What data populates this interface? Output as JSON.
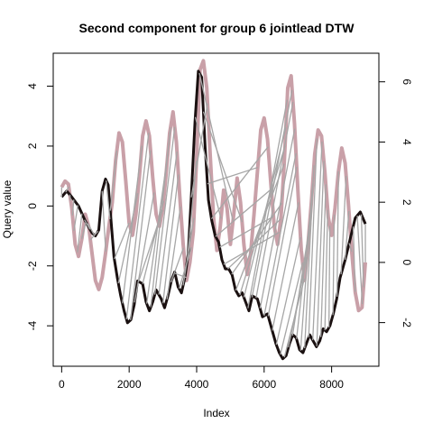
{
  "chart_data": {
    "type": "line",
    "title": "Second component for group 6 jointlead DTW",
    "xlabel": "Index",
    "ylabel": "Query value",
    "xlim": [
      -250,
      9400
    ],
    "ylim": [
      -5.35,
      5.1
    ],
    "ylim_right": [
      -3.45,
      6.95
    ],
    "x_ticks": [
      0,
      2000,
      4000,
      6000,
      8000
    ],
    "y_ticks_left": [
      -4,
      -2,
      0,
      2,
      4
    ],
    "y_ticks_right": [
      -2,
      0,
      2,
      4,
      6
    ],
    "grid": false,
    "legend": "none",
    "colors": {
      "query": "#1a1010",
      "reference": "#c9a0a8",
      "alignment": "#a6a6a6"
    },
    "series": [
      {
        "axis": "left",
        "x": [
          0,
          150,
          300,
          500,
          700,
          900,
          1000,
          1100,
          1200,
          1300,
          1380,
          1450,
          1550,
          1650,
          1750,
          1850,
          1950,
          2050,
          2150,
          2250,
          2400,
          2500,
          2600,
          2700,
          2800,
          2950,
          3050,
          3150,
          3250,
          3350,
          3450,
          3550,
          3650,
          3750,
          3850,
          3950,
          4050,
          4150,
          4250,
          4350,
          4450,
          4550,
          4650,
          4750,
          4850,
          4950,
          5050,
          5150,
          5250,
          5350,
          5450,
          5550,
          5650,
          5800,
          5950,
          6100,
          6250,
          6350,
          6450,
          6550,
          6650,
          6750,
          6850,
          6950,
          7050,
          7150,
          7250,
          7350,
          7450,
          7550,
          7650,
          7750,
          7850,
          7950,
          8050,
          8150,
          8250,
          8400,
          8550,
          8700,
          8850,
          9000
        ],
        "y": [
          0.3,
          0.5,
          0.3,
          0.0,
          -0.5,
          -0.9,
          -1.0,
          -0.8,
          0.5,
          0.9,
          0.7,
          -0.3,
          -1.7,
          -2.4,
          -3.0,
          -3.5,
          -3.9,
          -3.8,
          -3.3,
          -2.5,
          -2.6,
          -3.2,
          -3.5,
          -3.2,
          -2.8,
          -3.1,
          -3.4,
          -3.0,
          -2.5,
          -2.2,
          -2.7,
          -2.9,
          -2.4,
          -1.6,
          0.5,
          2.8,
          4.5,
          4.3,
          2.0,
          0.2,
          -0.5,
          -1.0,
          -1.2,
          -1.8,
          -2.1,
          -2.1,
          -2.3,
          -2.8,
          -3.0,
          -2.9,
          -3.2,
          -3.5,
          -3.0,
          -3.1,
          -3.7,
          -3.6,
          -4.2,
          -4.6,
          -4.9,
          -5.1,
          -5.0,
          -4.6,
          -4.3,
          -4.4,
          -4.8,
          -4.9,
          -4.6,
          -4.3,
          -4.5,
          -4.7,
          -4.5,
          -4.1,
          -4.2,
          -4.0,
          -3.6,
          -3.1,
          -2.4,
          -1.8,
          -1.1,
          -0.4,
          -0.2,
          -0.6
        ]
      },
      {
        "axis": "right",
        "x": [
          0,
          100,
          200,
          300,
          400,
          500,
          600,
          700,
          800,
          900,
          1000,
          1100,
          1200,
          1300,
          1400,
          1500,
          1600,
          1700,
          1800,
          1900,
          2000,
          2100,
          2200,
          2300,
          2400,
          2500,
          2600,
          2700,
          2800,
          2900,
          3000,
          3100,
          3200,
          3300,
          3400,
          3500,
          3600,
          3700,
          3800,
          3900,
          4000,
          4100,
          4200,
          4300,
          4400,
          4500,
          4600,
          4700,
          4800,
          4900,
          5000,
          5100,
          5200,
          5300,
          5400,
          5500,
          5600,
          5700,
          5800,
          5900,
          6000,
          6100,
          6200,
          6300,
          6400,
          6500,
          6600,
          6700,
          6800,
          6900,
          7000,
          7100,
          7200,
          7300,
          7400,
          7500,
          7600,
          7700,
          7800,
          7900,
          8000,
          8100,
          8200,
          8300,
          8400,
          8500,
          8600,
          8700,
          8800,
          8900,
          9000
        ],
        "y": [
          2.5,
          2.7,
          2.6,
          1.8,
          0.6,
          0.2,
          0.8,
          1.6,
          1.2,
          0.3,
          -0.6,
          -0.9,
          -0.5,
          0.3,
          1.2,
          2.0,
          3.4,
          4.3,
          4.0,
          2.7,
          1.3,
          0.9,
          1.6,
          2.8,
          4.2,
          4.7,
          4.2,
          2.8,
          1.6,
          1.2,
          1.8,
          3.0,
          4.3,
          5.0,
          4.0,
          2.2,
          0.6,
          -0.6,
          0.0,
          1.0,
          3.5,
          6.4,
          6.7,
          5.8,
          3.6,
          1.5,
          0.4,
          1.2,
          2.4,
          1.8,
          0.6,
          1.6,
          2.8,
          2.0,
          0.6,
          -0.4,
          0.3,
          1.6,
          3.0,
          4.4,
          4.8,
          4.1,
          2.6,
          1.2,
          0.6,
          1.5,
          3.4,
          5.8,
          6.2,
          4.6,
          2.4,
          0.4,
          -0.6,
          0.6,
          2.0,
          3.6,
          4.4,
          4.2,
          3.0,
          1.5,
          0.9,
          1.8,
          3.0,
          3.8,
          3.3,
          1.9,
          0.3,
          -1.0,
          -1.6,
          -1.5,
          0.0
        ]
      }
    ],
    "alignment_step": 120
  }
}
